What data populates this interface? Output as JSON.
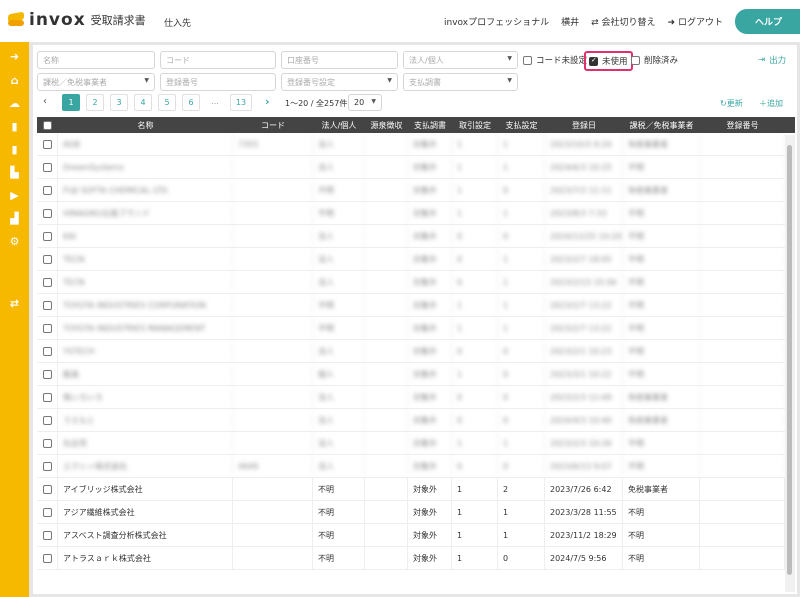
{
  "header": {
    "brand": "invox",
    "product": "受取請求書",
    "section": "仕入先",
    "org": "invoxプロフェッショナル",
    "user": "横井",
    "switch_company": "会社切り替え",
    "logout": "ログアウト",
    "help": "ヘルプ"
  },
  "colors": {
    "sidebar": "#f7b800",
    "accent": "#3aa6a2",
    "table_header": "#444444",
    "highlight": "#e0306a"
  },
  "sidebar": {
    "icons": [
      "arrow-right-circle-icon",
      "home-icon",
      "cloud-upload-icon",
      "document-icon",
      "document-alt-icon",
      "buildings-icon",
      "document-export-icon",
      "chart-icon",
      "gear-icon",
      "switch-icon"
    ]
  },
  "filters": {
    "name": "名称",
    "code": "コード",
    "account": "口座番号",
    "entity": "法人/個人",
    "tax": "課税／免税事業者",
    "reg_no": "登録番号",
    "reg_setting": "登録番号設定",
    "payment_report": "支払調書",
    "code_unset": "コード未設定",
    "unused": "未使用",
    "unused_checked": true,
    "deleted": "削除済み",
    "export": "出力"
  },
  "pagination": {
    "pages": [
      "1",
      "2",
      "3",
      "4",
      "5",
      "6",
      "...",
      "13"
    ],
    "current": "1",
    "range": "1〜20 / 全257件",
    "per_page": "20",
    "refresh": "更新",
    "add": "追加"
  },
  "table": {
    "columns": [
      "名称",
      "コード",
      "法人/個人",
      "源泉徴収",
      "支払調書",
      "取引設定",
      "支払設定",
      "登録日",
      "課税／免税事業者",
      "登録番号"
    ],
    "rows": [
      [
        "AGB",
        "7355",
        "法人",
        "",
        "対象外",
        "1",
        "1",
        "2023/10/3 9:20",
        "免税事業者",
        ""
      ],
      [
        "DreamSystems",
        "",
        "法人",
        "",
        "対象外",
        "1",
        "1",
        "2024/6/3 10:25",
        "不明",
        ""
      ],
      [
        "FUJI SOFTA CHEMICAL LTD.",
        "",
        "不明",
        "",
        "対象外",
        "1",
        "0",
        "2023/7/3 11:11",
        "免税事業者",
        ""
      ],
      [
        "HINAGIKU企画ブランド",
        "",
        "不明",
        "",
        "対象外",
        "1",
        "1",
        "2023/8/3 7:33",
        "不明",
        ""
      ],
      [
        "KAI",
        "",
        "法人",
        "",
        "対象外",
        "0",
        "0",
        "2024/12/25 10:20",
        "不明",
        ""
      ],
      [
        "TECN",
        "",
        "法人",
        "",
        "対象外",
        "0",
        "1",
        "2023/2/7 18:05",
        "不明",
        ""
      ],
      [
        "TECN",
        "",
        "法人",
        "",
        "対象外",
        "0",
        "1",
        "2023/2/13 15:56",
        "不明",
        ""
      ],
      [
        "TOYOTA INDUSTRIES CORPORATION",
        "",
        "不明",
        "",
        "対象外",
        "1",
        "1",
        "2023/2/7 13:22",
        "不明",
        ""
      ],
      [
        "TOYOTA INDUSTRIES MANAGEMENT",
        "",
        "不明",
        "",
        "対象外",
        "1",
        "1",
        "2023/2/7 13:22",
        "不明",
        ""
      ],
      [
        "YSTECH",
        "",
        "法人",
        "",
        "対象外",
        "0",
        "0",
        "2023/2/1 10:23",
        "不明",
        ""
      ],
      [
        "飯島",
        "",
        "個人",
        "",
        "対象外",
        "1",
        "0",
        "2023/3/1 10:22",
        "不明",
        ""
      ],
      [
        "株いろいろ",
        "",
        "法人",
        "",
        "対象外",
        "0",
        "0",
        "2023/2/3 12:49",
        "免税事業者",
        ""
      ],
      [
        "うえもと",
        "",
        "法人",
        "",
        "対象外",
        "0",
        "0",
        "2024/4/3 10:40",
        "免税事業者",
        ""
      ],
      [
        "丸住宅",
        "",
        "法人",
        "",
        "対象外",
        "1",
        "1",
        "2023/2/3 10:26",
        "不明",
        ""
      ],
      [
        "エクシィ株式会社",
        "4649",
        "法人",
        "",
        "対象外",
        "0",
        "0",
        "2023/6/13 9:07",
        "不明",
        ""
      ],
      [
        "アイブリッジ株式会社",
        "",
        "不明",
        "",
        "対象外",
        "1",
        "2",
        "2023/7/26 6:42",
        "免税事業者",
        ""
      ],
      [
        "アジア繊維株式会社",
        "",
        "不明",
        "",
        "対象外",
        "1",
        "1",
        "2023/3/28 11:55",
        "不明",
        ""
      ],
      [
        "アスベスト調査分析株式会社",
        "",
        "不明",
        "",
        "対象外",
        "1",
        "1",
        "2023/11/2 18:29",
        "不明",
        ""
      ],
      [
        "アトラスａｒｋ株式会社",
        "",
        "不明",
        "",
        "対象外",
        "1",
        "0",
        "2024/7/5 9:56",
        "不明",
        ""
      ]
    ]
  }
}
